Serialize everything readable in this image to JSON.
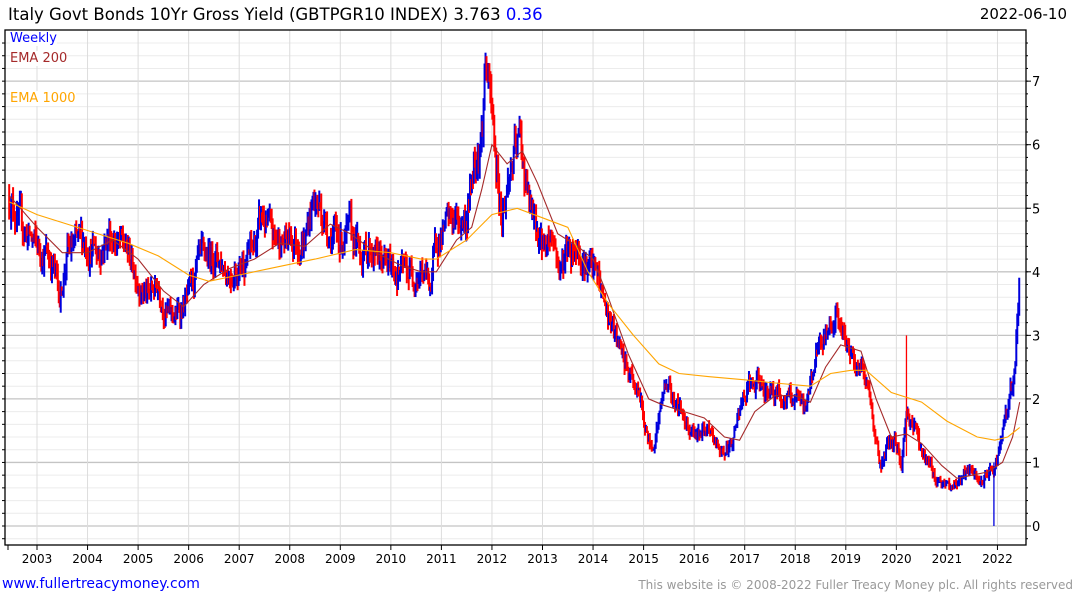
{
  "header": {
    "title": "Italy Govt Bonds 10Yr Gross Yield (GBTPGR10 INDEX) 3.763",
    "change": "0.36",
    "date": "2022-06-10"
  },
  "legend": {
    "weekly": "Weekly",
    "ema200": "EMA 200",
    "ema1000": "EMA 1000"
  },
  "footer": {
    "site": "www.fullertreacymoney.com",
    "copyright": "This website is © 2008-2022 Fuller Treacy Money plc. All rights reserved"
  },
  "chart_data": {
    "type": "line",
    "title": "Italy Govt Bonds 10Yr Gross Yield (GBTPGR10 INDEX)",
    "xlabel": "",
    "ylabel": "",
    "xlim": [
      2002.45,
      2022.44
    ],
    "ylim": [
      -0.3,
      7.8
    ],
    "x_ticks": [
      "2003",
      "2004",
      "2005",
      "2006",
      "2007",
      "2008",
      "2009",
      "2010",
      "2011",
      "2012",
      "2013",
      "2014",
      "2015",
      "2016",
      "2017",
      "2018",
      "2019",
      "2020",
      "2021",
      "2022"
    ],
    "y_ticks": [
      0,
      1,
      2,
      3,
      4,
      5,
      6,
      7
    ],
    "grid": true,
    "colors": {
      "up": "#0000dd",
      "down": "#ff0000",
      "ema200": "#a52a2a",
      "ema1000": "#ffa500"
    },
    "series": [
      {
        "name": "Weekly",
        "points": [
          [
            2002.45,
            5.2
          ],
          [
            2002.7,
            4.7
          ],
          [
            2003.0,
            4.4
          ],
          [
            2003.3,
            4.2
          ],
          [
            2003.45,
            3.6
          ],
          [
            2003.6,
            4.3
          ],
          [
            2003.9,
            4.5
          ],
          [
            2004.2,
            4.3
          ],
          [
            2004.45,
            4.6
          ],
          [
            2004.8,
            4.3
          ],
          [
            2005.0,
            3.9
          ],
          [
            2005.2,
            3.6
          ],
          [
            2005.4,
            3.8
          ],
          [
            2005.6,
            3.3
          ],
          [
            2005.75,
            3.3
          ],
          [
            2005.9,
            3.5
          ],
          [
            2006.0,
            3.6
          ],
          [
            2006.2,
            4.1
          ],
          [
            2006.5,
            4.3
          ],
          [
            2006.8,
            4.0
          ],
          [
            2007.0,
            4.1
          ],
          [
            2007.3,
            4.4
          ],
          [
            2007.45,
            4.85
          ],
          [
            2007.7,
            4.5
          ],
          [
            2008.0,
            4.5
          ],
          [
            2008.3,
            4.5
          ],
          [
            2008.45,
            5.1
          ],
          [
            2008.6,
            5.0
          ],
          [
            2008.8,
            4.6
          ],
          [
            2009.0,
            4.5
          ],
          [
            2009.2,
            4.6
          ],
          [
            2009.4,
            4.3
          ],
          [
            2009.6,
            4.4
          ],
          [
            2009.9,
            4.1
          ],
          [
            2010.2,
            4.0
          ],
          [
            2010.4,
            4.0
          ],
          [
            2010.6,
            4.0
          ],
          [
            2010.8,
            3.8
          ],
          [
            2010.9,
            4.5
          ],
          [
            2011.2,
            4.8
          ],
          [
            2011.5,
            4.8
          ],
          [
            2011.65,
            5.8
          ],
          [
            2011.8,
            6.2
          ],
          [
            2011.87,
            7.3
          ],
          [
            2011.95,
            6.8
          ],
          [
            2012.1,
            5.6
          ],
          [
            2012.2,
            4.9
          ],
          [
            2012.4,
            5.7
          ],
          [
            2012.55,
            6.1
          ],
          [
            2012.75,
            5.0
          ],
          [
            2012.9,
            4.6
          ],
          [
            2013.0,
            4.4
          ],
          [
            2013.2,
            4.6
          ],
          [
            2013.35,
            4.0
          ],
          [
            2013.5,
            4.4
          ],
          [
            2013.7,
            4.4
          ],
          [
            2013.9,
            4.1
          ],
          [
            2014.1,
            3.9
          ],
          [
            2014.3,
            3.3
          ],
          [
            2014.5,
            2.8
          ],
          [
            2014.7,
            2.4
          ],
          [
            2014.9,
            2.1
          ],
          [
            2015.05,
            1.5
          ],
          [
            2015.15,
            1.2
          ],
          [
            2015.3,
            1.7
          ],
          [
            2015.45,
            2.3
          ],
          [
            2015.6,
            2.0
          ],
          [
            2015.8,
            1.7
          ],
          [
            2016.0,
            1.5
          ],
          [
            2016.2,
            1.5
          ],
          [
            2016.5,
            1.2
          ],
          [
            2016.7,
            1.2
          ],
          [
            2016.9,
            1.8
          ],
          [
            2017.1,
            2.2
          ],
          [
            2017.4,
            2.2
          ],
          [
            2017.6,
            2.1
          ],
          [
            2017.8,
            2.0
          ],
          [
            2018.0,
            2.0
          ],
          [
            2018.2,
            1.8
          ],
          [
            2018.4,
            2.7
          ],
          [
            2018.6,
            3.0
          ],
          [
            2018.8,
            3.4
          ],
          [
            2019.0,
            2.8
          ],
          [
            2019.2,
            2.6
          ],
          [
            2019.4,
            2.4
          ],
          [
            2019.55,
            1.6
          ],
          [
            2019.7,
            0.9
          ],
          [
            2019.85,
            1.3
          ],
          [
            2020.0,
            1.3
          ],
          [
            2020.1,
            0.95
          ],
          [
            2020.2,
            1.8
          ],
          [
            2020.35,
            1.6
          ],
          [
            2020.55,
            1.1
          ],
          [
            2020.75,
            0.8
          ],
          [
            2021.0,
            0.6
          ],
          [
            2021.15,
            0.65
          ],
          [
            2021.4,
            0.9
          ],
          [
            2021.6,
            0.7
          ],
          [
            2021.75,
            0.7
          ],
          [
            2021.95,
            0.95
          ],
          [
            2022.1,
            1.4
          ],
          [
            2022.25,
            2.0
          ],
          [
            2022.35,
            2.6
          ],
          [
            2022.44,
            3.763
          ]
        ]
      },
      {
        "name": "EMA 200",
        "points": [
          [
            2002.45,
            5.2
          ],
          [
            2003.0,
            4.7
          ],
          [
            2003.5,
            4.3
          ],
          [
            2004.0,
            4.3
          ],
          [
            2004.5,
            4.5
          ],
          [
            2005.0,
            4.2
          ],
          [
            2005.5,
            3.7
          ],
          [
            2005.9,
            3.45
          ],
          [
            2006.3,
            3.8
          ],
          [
            2006.8,
            4.05
          ],
          [
            2007.3,
            4.2
          ],
          [
            2007.8,
            4.45
          ],
          [
            2008.3,
            4.4
          ],
          [
            2008.8,
            4.75
          ],
          [
            2009.2,
            4.6
          ],
          [
            2009.7,
            4.3
          ],
          [
            2010.2,
            4.1
          ],
          [
            2010.6,
            4.0
          ],
          [
            2010.9,
            4.0
          ],
          [
            2011.3,
            4.5
          ],
          [
            2011.6,
            4.7
          ],
          [
            2011.8,
            5.3
          ],
          [
            2012.0,
            6.0
          ],
          [
            2012.3,
            5.7
          ],
          [
            2012.6,
            5.9
          ],
          [
            2012.9,
            5.4
          ],
          [
            2013.3,
            4.6
          ],
          [
            2013.7,
            4.4
          ],
          [
            2014.0,
            4.2
          ],
          [
            2014.3,
            3.6
          ],
          [
            2014.7,
            2.7
          ],
          [
            2015.1,
            2.0
          ],
          [
            2015.4,
            1.9
          ],
          [
            2015.8,
            1.8
          ],
          [
            2016.2,
            1.7
          ],
          [
            2016.6,
            1.4
          ],
          [
            2016.9,
            1.35
          ],
          [
            2017.2,
            1.8
          ],
          [
            2017.6,
            2.05
          ],
          [
            2018.0,
            2.05
          ],
          [
            2018.3,
            1.95
          ],
          [
            2018.6,
            2.5
          ],
          [
            2018.9,
            2.85
          ],
          [
            2019.3,
            2.75
          ],
          [
            2019.6,
            2.0
          ],
          [
            2019.9,
            1.4
          ],
          [
            2020.2,
            1.45
          ],
          [
            2020.5,
            1.3
          ],
          [
            2020.9,
            0.95
          ],
          [
            2021.2,
            0.75
          ],
          [
            2021.5,
            0.8
          ],
          [
            2021.8,
            0.85
          ],
          [
            2022.1,
            1.0
          ],
          [
            2022.3,
            1.4
          ],
          [
            2022.44,
            1.95
          ]
        ]
      },
      {
        "name": "EMA 1000",
        "points": [
          [
            2002.45,
            5.1
          ],
          [
            2003.0,
            4.9
          ],
          [
            2004.0,
            4.65
          ],
          [
            2004.8,
            4.45
          ],
          [
            2005.4,
            4.25
          ],
          [
            2006.0,
            3.95
          ],
          [
            2006.4,
            3.85
          ],
          [
            2007.0,
            3.95
          ],
          [
            2007.6,
            4.05
          ],
          [
            2008.5,
            4.2
          ],
          [
            2009.3,
            4.35
          ],
          [
            2010.0,
            4.3
          ],
          [
            2010.6,
            4.2
          ],
          [
            2010.9,
            4.2
          ],
          [
            2011.5,
            4.5
          ],
          [
            2012.0,
            4.9
          ],
          [
            2012.5,
            5.0
          ],
          [
            2013.0,
            4.85
          ],
          [
            2013.5,
            4.7
          ],
          [
            2013.9,
            4.0
          ],
          [
            2014.3,
            3.5
          ],
          [
            2014.8,
            3.0
          ],
          [
            2015.3,
            2.55
          ],
          [
            2015.7,
            2.4
          ],
          [
            2016.3,
            2.35
          ],
          [
            2017.0,
            2.3
          ],
          [
            2017.6,
            2.25
          ],
          [
            2018.3,
            2.2
          ],
          [
            2018.7,
            2.4
          ],
          [
            2019.1,
            2.45
          ],
          [
            2019.4,
            2.45
          ],
          [
            2019.9,
            2.1
          ],
          [
            2020.5,
            1.95
          ],
          [
            2021.0,
            1.65
          ],
          [
            2021.6,
            1.4
          ],
          [
            2021.95,
            1.35
          ],
          [
            2022.2,
            1.4
          ],
          [
            2022.44,
            1.55
          ]
        ]
      }
    ],
    "spikes": [
      {
        "x": 2020.2,
        "low": 1.1,
        "high": 3.0,
        "dir": "down"
      },
      {
        "x": 2021.93,
        "low": 0.0,
        "high": 1.0,
        "dir": "up"
      }
    ]
  }
}
